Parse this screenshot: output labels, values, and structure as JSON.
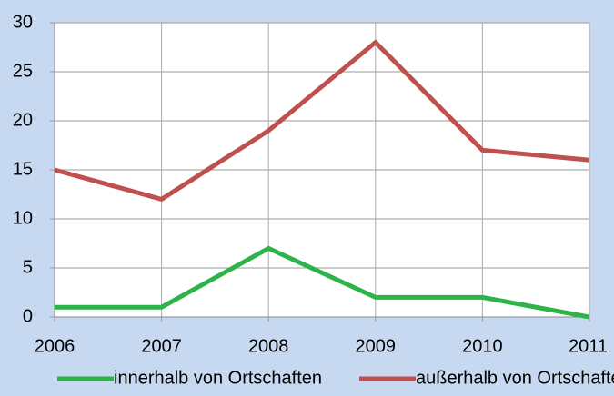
{
  "chart_data": {
    "type": "line",
    "x": [
      2006,
      2007,
      2008,
      2009,
      2010,
      2011
    ],
    "xlim": [
      2006,
      2011
    ],
    "xticks": [
      2006,
      2007,
      2008,
      2009,
      2010,
      2011
    ],
    "ylim": [
      0,
      30
    ],
    "yticks": [
      0,
      5,
      10,
      15,
      20,
      25,
      30
    ],
    "grid": true,
    "legend": "bottom",
    "series": [
      {
        "name": "innerhalb von Ortschaften",
        "color": "#2db34a",
        "values": [
          1,
          1,
          7,
          2,
          2,
          0
        ]
      },
      {
        "name": "außerhalb von Ortschaften",
        "color": "#c0504d",
        "values": [
          15,
          12,
          19,
          28,
          17,
          16
        ]
      }
    ]
  }
}
